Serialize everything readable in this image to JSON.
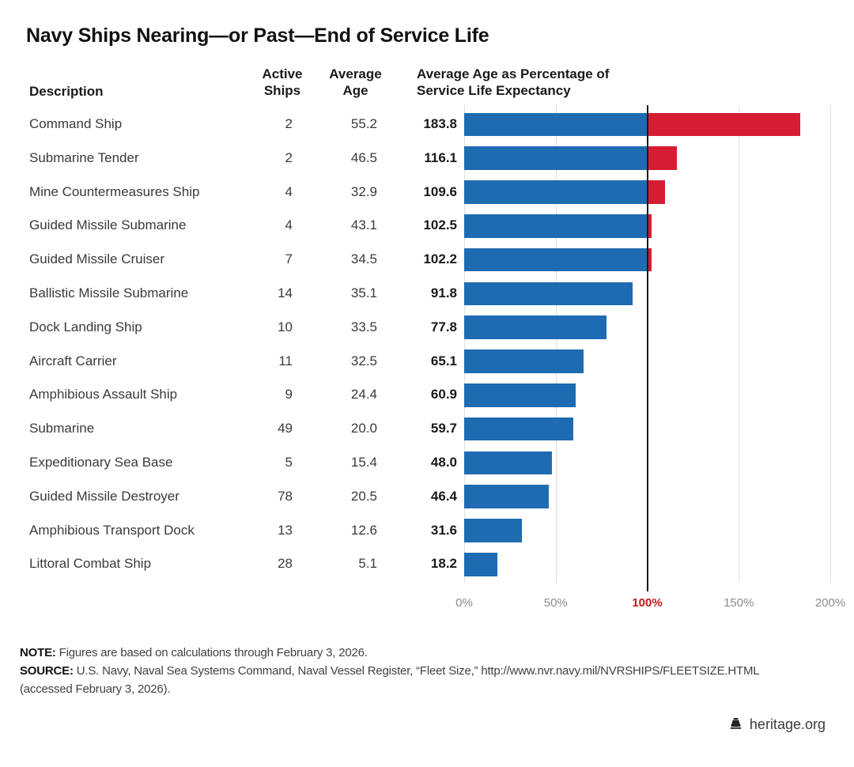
{
  "title": "Navy Ships Nearing—or Past—End of Service Life",
  "table": {
    "headers": {
      "description": "Description",
      "active_ships_line1": "Active",
      "active_ships_line2": "Ships",
      "average_age_line1": "Average",
      "average_age_line2": "Age",
      "chart_line1": "Average Age as Percentage of",
      "chart_line2": "Service Life Expectancy"
    }
  },
  "chart_data": {
    "type": "bar",
    "orientation": "horizontal",
    "title": "Average Age as Percentage of Service Life Expectancy",
    "xlabel": "Percentage of Service Life Expectancy",
    "xlim": [
      0,
      200
    ],
    "grid": true,
    "x_ticks": [
      {
        "label": "0%",
        "value": 0,
        "emphasis": false
      },
      {
        "label": "50%",
        "value": 50,
        "emphasis": false
      },
      {
        "label": "100%",
        "value": 100,
        "emphasis": true
      },
      {
        "label": "150%",
        "value": 150,
        "emphasis": false
      },
      {
        "label": "200%",
        "value": 200,
        "emphasis": false
      }
    ],
    "reference_line": {
      "value": 100,
      "color": "#1a1a1a"
    },
    "colors": {
      "bar_under_100": "#1f6bb2",
      "bar_over_100": "#d51c32",
      "tick_emphasis": "#c4161f",
      "gridline": "#e0e0e0"
    },
    "rows": [
      {
        "description": "Command Ship",
        "active_ships": 2,
        "average_age": 55.2,
        "pct_of_service_life": 183.8
      },
      {
        "description": "Submarine Tender",
        "active_ships": 2,
        "average_age": 46.5,
        "pct_of_service_life": 116.1
      },
      {
        "description": "Mine Countermeasures Ship",
        "active_ships": 4,
        "average_age": 32.9,
        "pct_of_service_life": 109.6
      },
      {
        "description": "Guided Missile Submarine",
        "active_ships": 4,
        "average_age": 43.1,
        "pct_of_service_life": 102.5
      },
      {
        "description": "Guided Missile Cruiser",
        "active_ships": 7,
        "average_age": 34.5,
        "pct_of_service_life": 102.2
      },
      {
        "description": "Ballistic Missile Submarine",
        "active_ships": 14,
        "average_age": 35.1,
        "pct_of_service_life": 91.8
      },
      {
        "description": "Dock Landing Ship",
        "active_ships": 10,
        "average_age": 33.5,
        "pct_of_service_life": 77.8
      },
      {
        "description": "Aircraft Carrier",
        "active_ships": 11,
        "average_age": 32.5,
        "pct_of_service_life": 65.1
      },
      {
        "description": "Amphibious Assault Ship",
        "active_ships": 9,
        "average_age": 24.4,
        "pct_of_service_life": 60.9
      },
      {
        "description": "Submarine",
        "active_ships": 49,
        "average_age": 20.0,
        "pct_of_service_life": 59.7
      },
      {
        "description": "Expeditionary Sea Base",
        "active_ships": 5,
        "average_age": 15.4,
        "pct_of_service_life": 48.0
      },
      {
        "description": "Guided Missile Destroyer",
        "active_ships": 78,
        "average_age": 20.5,
        "pct_of_service_life": 46.4
      },
      {
        "description": "Amphibious Transport Dock",
        "active_ships": 13,
        "average_age": 12.6,
        "pct_of_service_life": 31.6
      },
      {
        "description": "Littoral Combat Ship",
        "active_ships": 28,
        "average_age": 5.1,
        "pct_of_service_life": 18.2
      }
    ]
  },
  "notes": {
    "note_label": "NOTE:",
    "note_text": " Figures are based on calculations through February 3, 2026.",
    "source_label": "SOURCE:",
    "source_line1": " U.S. Navy, Naval Sea Systems Command, Naval Vessel Register, “Fleet Size,” http://www.nvr.navy.mil/NVRSHIPS/FLEETSIZE.HTML",
    "source_line2": "(accessed February 3, 2026)."
  },
  "footer": {
    "brand": "heritage.org",
    "logo_icon": "liberty-bell-icon"
  }
}
